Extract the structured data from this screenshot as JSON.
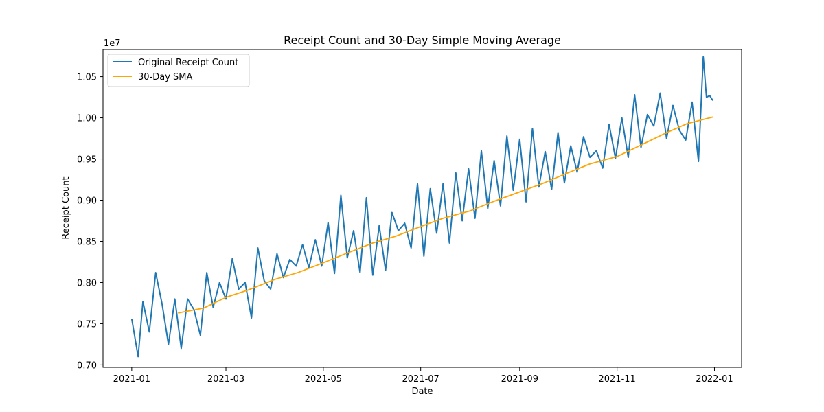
{
  "chart_data": {
    "type": "line",
    "title": "Receipt Count and 30-Day Simple Moving Average",
    "xlabel": "Date",
    "ylabel": "Receipt Count",
    "y_offset_label": "1e7",
    "x_ticks": [
      "2021-01",
      "2021-03",
      "2021-05",
      "2021-07",
      "2021-09",
      "2021-11",
      "2022-01"
    ],
    "y_ticks": [
      "0.70",
      "0.75",
      "0.80",
      "0.85",
      "0.90",
      "0.95",
      "1.00",
      "1.05"
    ],
    "xlim": [
      "2020-12-14",
      "2022-01-18"
    ],
    "ylim": [
      6.97,
      10.83
    ],
    "y_unit_scale": 10000000,
    "grid": false,
    "legend_position": "top-left",
    "series": [
      {
        "name": "Original Receipt Count",
        "color": "#1f77b4",
        "style": "solid",
        "x_dates": [
          "2021-01-01",
          "2021-01-05",
          "2021-01-08",
          "2021-01-12",
          "2021-01-16",
          "2021-01-20",
          "2021-01-24",
          "2021-01-28",
          "2021-02-01",
          "2021-02-05",
          "2021-02-09",
          "2021-02-13",
          "2021-02-17",
          "2021-02-21",
          "2021-02-25",
          "2021-03-01",
          "2021-03-05",
          "2021-03-09",
          "2021-03-13",
          "2021-03-17",
          "2021-03-21",
          "2021-03-25",
          "2021-03-29",
          "2021-04-02",
          "2021-04-06",
          "2021-04-10",
          "2021-04-14",
          "2021-04-18",
          "2021-04-22",
          "2021-04-26",
          "2021-04-30",
          "2021-05-04",
          "2021-05-08",
          "2021-05-12",
          "2021-05-16",
          "2021-05-20",
          "2021-05-24",
          "2021-05-28",
          "2021-06-01",
          "2021-06-05",
          "2021-06-09",
          "2021-06-13",
          "2021-06-17",
          "2021-06-21",
          "2021-06-25",
          "2021-06-29",
          "2021-07-03",
          "2021-07-07",
          "2021-07-11",
          "2021-07-15",
          "2021-07-19",
          "2021-07-23",
          "2021-07-27",
          "2021-07-31",
          "2021-08-04",
          "2021-08-08",
          "2021-08-12",
          "2021-08-16",
          "2021-08-20",
          "2021-08-24",
          "2021-08-28",
          "2021-09-01",
          "2021-09-05",
          "2021-09-09",
          "2021-09-13",
          "2021-09-17",
          "2021-09-21",
          "2021-09-25",
          "2021-09-29",
          "2021-10-03",
          "2021-10-07",
          "2021-10-11",
          "2021-10-15",
          "2021-10-19",
          "2021-10-23",
          "2021-10-27",
          "2021-10-31",
          "2021-11-04",
          "2021-11-08",
          "2021-11-12",
          "2021-11-16",
          "2021-11-20",
          "2021-11-24",
          "2021-11-28",
          "2021-12-02",
          "2021-12-06",
          "2021-12-10",
          "2021-12-14",
          "2021-12-18",
          "2021-12-22",
          "2021-12-25",
          "2021-12-27",
          "2021-12-29",
          "2021-12-31"
        ],
        "y_values": [
          7.56,
          7.1,
          7.77,
          7.4,
          8.12,
          7.74,
          7.25,
          7.8,
          7.2,
          7.8,
          7.67,
          7.36,
          8.12,
          7.7,
          8.0,
          7.8,
          8.29,
          7.92,
          8.0,
          7.57,
          8.42,
          8.02,
          7.92,
          8.35,
          8.06,
          8.28,
          8.2,
          8.46,
          8.18,
          8.52,
          8.2,
          8.73,
          8.11,
          9.06,
          8.3,
          8.63,
          8.12,
          9.03,
          8.09,
          8.69,
          8.15,
          8.85,
          8.63,
          8.72,
          8.42,
          9.2,
          8.32,
          9.14,
          8.6,
          9.2,
          8.48,
          9.33,
          8.75,
          9.38,
          8.78,
          9.6,
          8.9,
          9.48,
          8.93,
          9.78,
          9.12,
          9.74,
          8.98,
          9.87,
          9.16,
          9.59,
          9.13,
          9.82,
          9.21,
          9.66,
          9.34,
          9.77,
          9.52,
          9.6,
          9.39,
          9.92,
          9.51,
          10.0,
          9.52,
          10.28,
          9.64,
          10.04,
          9.9,
          10.3,
          9.75,
          10.15,
          9.85,
          9.73,
          10.19,
          9.47,
          10.74,
          10.25,
          10.27,
          10.21
        ]
      },
      {
        "name": "30-Day SMA",
        "color": "#ffa500",
        "style": "solid",
        "x_dates": [
          "2021-01-30",
          "2021-02-15",
          "2021-03-01",
          "2021-03-15",
          "2021-04-01",
          "2021-04-15",
          "2021-05-01",
          "2021-05-15",
          "2021-06-01",
          "2021-06-15",
          "2021-07-01",
          "2021-07-15",
          "2021-08-01",
          "2021-08-15",
          "2021-09-01",
          "2021-09-15",
          "2021-10-01",
          "2021-10-15",
          "2021-11-01",
          "2021-11-15",
          "2021-12-01",
          "2021-12-15",
          "2021-12-31"
        ],
        "y_values": [
          7.63,
          7.69,
          7.82,
          7.91,
          8.04,
          8.12,
          8.24,
          8.35,
          8.48,
          8.56,
          8.68,
          8.78,
          8.87,
          8.98,
          9.1,
          9.2,
          9.33,
          9.44,
          9.53,
          9.66,
          9.81,
          9.93,
          10.01
        ]
      }
    ]
  }
}
